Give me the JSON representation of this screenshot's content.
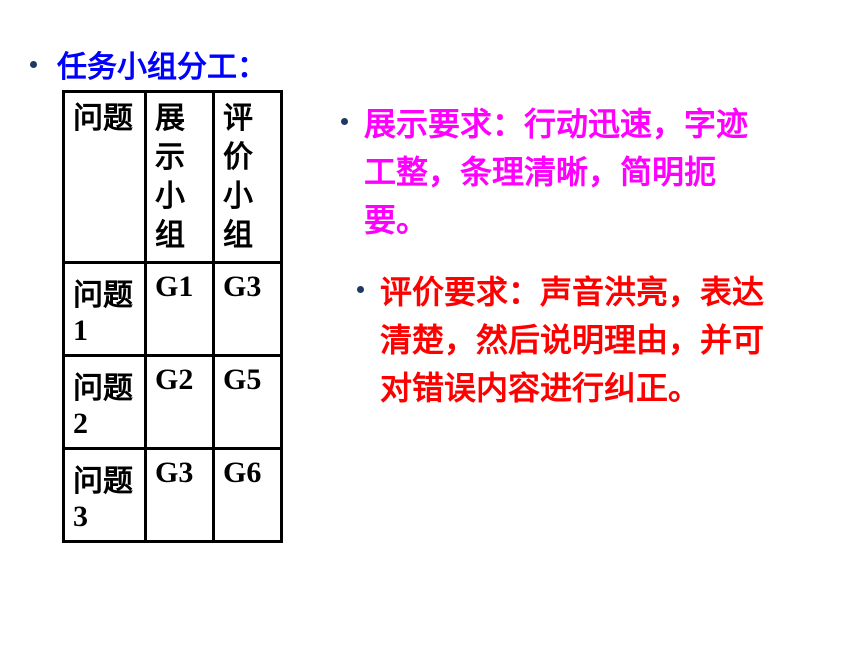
{
  "title": "任务小组分工：",
  "table": {
    "headers": [
      "问题",
      "展示小组",
      "评价小组"
    ],
    "rows": [
      [
        "问题1",
        "G1",
        "G3"
      ],
      [
        "问题2",
        "G2",
        "G5"
      ],
      [
        "问题3",
        "G3",
        "G6"
      ]
    ]
  },
  "bullets": [
    {
      "label": "展示要求：",
      "text": "行动迅速，字迹工整，条理清晰，简明扼要。",
      "color": "#ff00ff"
    },
    {
      "label": "评价要求：",
      "text": "声音洪亮，表达清楚，然后说明理由，并可对错误内容进行纠正。",
      "color": "#ff0000"
    }
  ],
  "styling": {
    "title_color": "#0000ff",
    "bullet_dot_color": "#1f3864",
    "border_color": "#000000",
    "background_color": "#ffffff",
    "font_size_title": 30,
    "font_size_table": 30,
    "font_size_bullet": 32
  }
}
